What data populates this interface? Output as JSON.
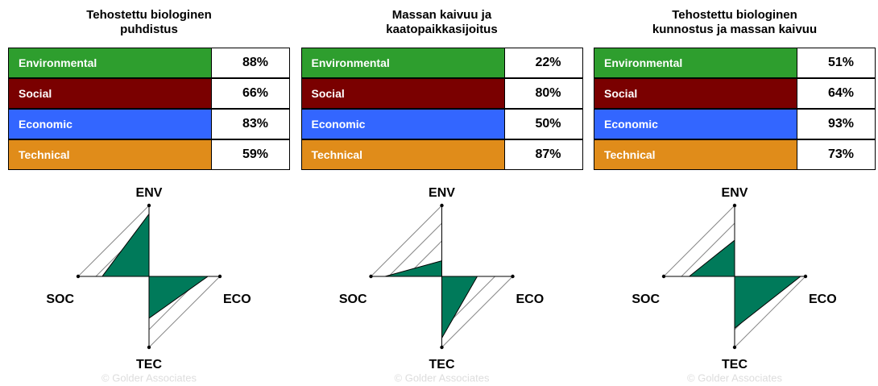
{
  "chart_data": [
    {
      "type": "radar",
      "title": "Tehostettu biologinen\npuhdistus",
      "categories": [
        "Environmental",
        "Social",
        "Economic",
        "Technical"
      ],
      "axis_labels": [
        "ENV",
        "SOC",
        "ECO",
        "TEC"
      ],
      "values": [
        88,
        66,
        83,
        59
      ],
      "value_labels": [
        "88%",
        "66%",
        "83%",
        "59%"
      ],
      "row_colors": [
        "#2e9e2e",
        "#7a0000",
        "#3366ff",
        "#e08c1a"
      ],
      "color": "#007a5a",
      "rlim": [
        0,
        100
      ],
      "rticks": [
        50,
        75,
        100
      ],
      "watermark": "© Golder Associates"
    },
    {
      "type": "radar",
      "title": "Massan kaivuu ja\nkaatopaikkasijoitus",
      "categories": [
        "Environmental",
        "Social",
        "Economic",
        "Technical"
      ],
      "axis_labels": [
        "ENV",
        "SOC",
        "ECO",
        "TEC"
      ],
      "values": [
        22,
        80,
        50,
        87
      ],
      "value_labels": [
        "22%",
        "80%",
        "50%",
        "87%"
      ],
      "row_colors": [
        "#2e9e2e",
        "#7a0000",
        "#3366ff",
        "#e08c1a"
      ],
      "color": "#007a5a",
      "rlim": [
        0,
        100
      ],
      "rticks": [
        50,
        75,
        100
      ],
      "watermark": "© Golder Associates"
    },
    {
      "type": "radar",
      "title": "Tehostettu biologinen\nkunnostus ja massan kaivuu",
      "categories": [
        "Environmental",
        "Social",
        "Economic",
        "Technical"
      ],
      "axis_labels": [
        "ENV",
        "SOC",
        "ECO",
        "TEC"
      ],
      "values": [
        51,
        64,
        93,
        73
      ],
      "value_labels": [
        "51%",
        "64%",
        "93%",
        "73%"
      ],
      "row_colors": [
        "#2e9e2e",
        "#7a0000",
        "#3366ff",
        "#e08c1a"
      ],
      "color": "#007a5a",
      "rlim": [
        0,
        100
      ],
      "rticks": [
        50,
        75,
        100
      ],
      "watermark": "© Golder Associates"
    }
  ]
}
